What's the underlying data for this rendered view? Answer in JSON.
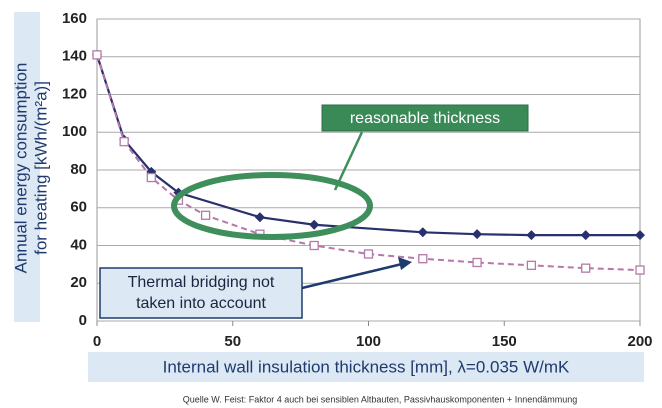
{
  "chart_data": {
    "type": "line",
    "y_label": [
      "Annual energy consumption",
      "for heating [kWh/(m²a)]"
    ],
    "x_label": "Internal wall insulation thickness [mm], λ=0.035 W/mK",
    "source": "Quelle W. Feist: Faktor 4 auch bei sensiblen Altbauten, Passivhauskomponenten + Innendämmung",
    "annotations": [
      {
        "text": "reasonable thickness"
      },
      {
        "lines": [
          "Thermal bridging not",
          "taken into account"
        ]
      }
    ],
    "xlim": [
      0,
      200
    ],
    "xticks": [
      0,
      50,
      100,
      150,
      200
    ],
    "ylim": [
      0,
      160
    ],
    "yticks": [
      0,
      20,
      40,
      60,
      80,
      100,
      120,
      140,
      160
    ],
    "grid": true,
    "series": [
      {
        "color": "#28306e",
        "marker": "diamond",
        "dashed": false,
        "x": [
          0,
          10,
          20,
          30,
          60,
          80,
          120,
          140,
          160,
          180,
          200
        ],
        "values": [
          141,
          96,
          79,
          68,
          55,
          51,
          47,
          46,
          45.5,
          45.5,
          45.5
        ]
      },
      {
        "color": "#b678a8",
        "marker": "square",
        "dashed": true,
        "x": [
          0,
          10,
          20,
          30,
          40,
          60,
          80,
          100,
          120,
          140,
          160,
          180,
          200
        ],
        "values": [
          141,
          95,
          76,
          64,
          56,
          46,
          40,
          35.5,
          33,
          31,
          29.5,
          28,
          27
        ]
      }
    ]
  }
}
